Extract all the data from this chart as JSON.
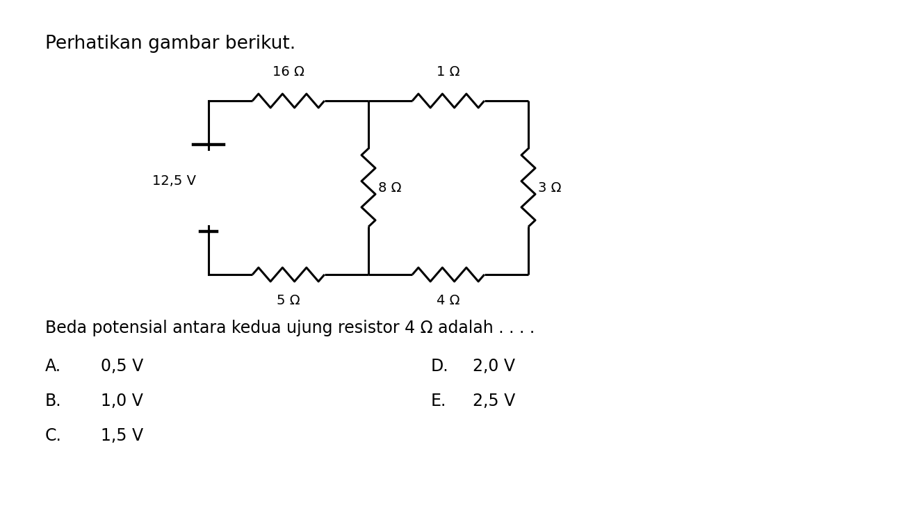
{
  "title_text": "Perhatikan gambar berikut.",
  "question_text": "Beda potensial antara kedua ujung resistor 4 Ω adalah . . . .",
  "options_left": [
    [
      "A.",
      "0,5 V"
    ],
    [
      "B.",
      "1,0 V"
    ],
    [
      "C.",
      "1,5 V"
    ]
  ],
  "options_right": [
    [
      "D.",
      "2,0 V"
    ],
    [
      "E.",
      "2,5 V"
    ]
  ],
  "voltage_label": "12,5 V",
  "R_top_left": "16 Ω",
  "R_top_right": "1 Ω",
  "R_mid_left": "8 Ω",
  "R_mid_right": "3 Ω",
  "R_bot_left": "5 Ω",
  "R_bot_right": "4 Ω",
  "bg_color": "#ffffff",
  "line_color": "#000000",
  "text_color": "#000000",
  "font_size_title": 19,
  "font_size_label": 14,
  "font_size_options": 17
}
